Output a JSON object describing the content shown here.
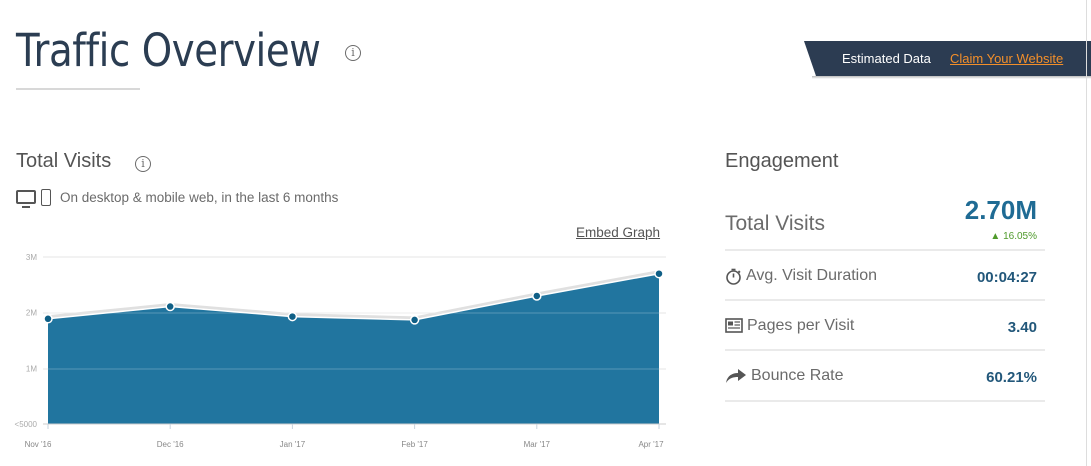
{
  "header": {
    "title": "Traffic Overview",
    "info_icon": "info-icon",
    "banner": {
      "label": "Estimated Data",
      "link": "Claim Your Website",
      "link_color": "#f38f2a",
      "bg_color": "#2c3c52"
    }
  },
  "total_visits_section": {
    "title": "Total Visits",
    "info_icon": "info-icon",
    "device_icons": [
      "desktop-icon",
      "mobile-icon"
    ],
    "subtitle": "On desktop & mobile web, in the last 6 months",
    "embed_link": "Embed Graph"
  },
  "chart_data": {
    "type": "area",
    "title": "Total Visits",
    "x": [
      "Nov '16",
      "Dec '16",
      "Jan '17",
      "Feb '17",
      "Mar '17",
      "Apr '17"
    ],
    "series": [
      {
        "name": "Total Visits",
        "values": [
          1890000,
          2110000,
          1930000,
          1870000,
          2300000,
          2700000
        ],
        "color": "#21759f"
      }
    ],
    "y_ticks": [
      "<5000",
      "1M",
      "2M",
      "3M"
    ],
    "ylim": [
      0,
      3000000
    ],
    "grid": true,
    "legend": null,
    "xlabel": "",
    "ylabel": ""
  },
  "engagement": {
    "title": "Engagement",
    "total_visits": {
      "label": "Total Visits",
      "value": "2.70M",
      "change": "16.05%",
      "change_direction": "up",
      "change_color": "#4f9a2b"
    },
    "metrics": [
      {
        "icon": "stopwatch-icon",
        "label": "Avg. Visit Duration",
        "value": "00:04:27"
      },
      {
        "icon": "pages-icon",
        "label": "Pages per Visit",
        "value": "3.40"
      },
      {
        "icon": "bounce-arrow-icon",
        "label": "Bounce Rate",
        "value": "60.21%"
      }
    ]
  }
}
